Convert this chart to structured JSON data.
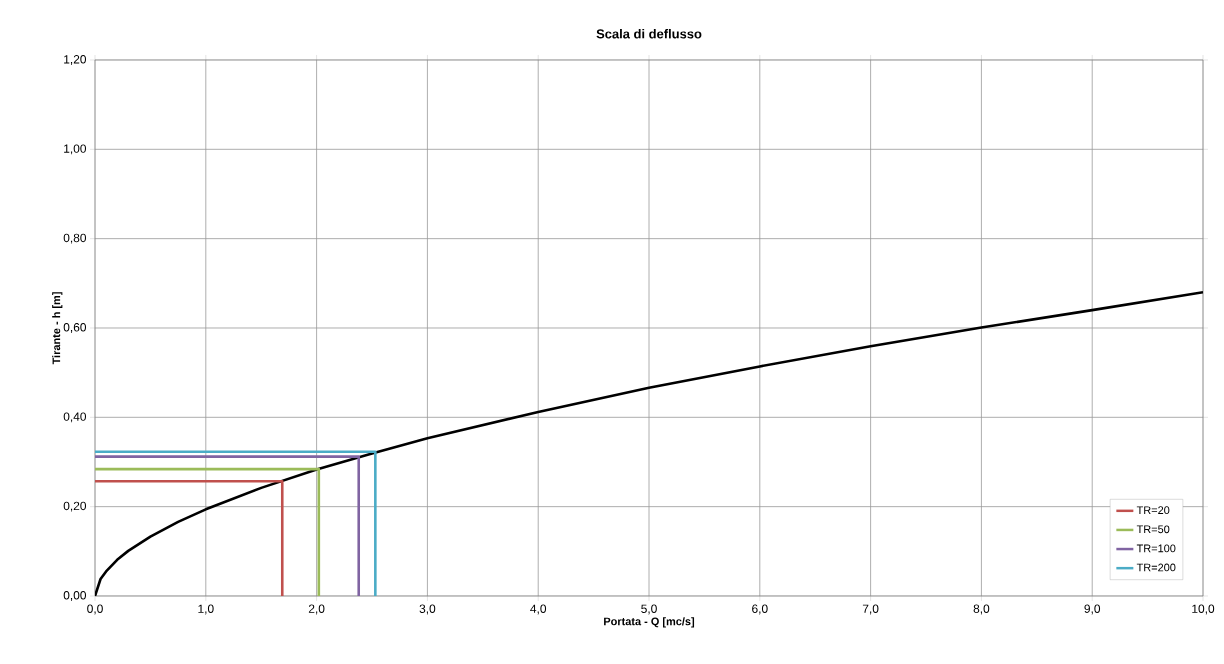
{
  "chart_data": {
    "type": "line",
    "title": "Scala di deflusso",
    "xlabel": "Portata  - Q [mc/s]",
    "ylabel": "Tirante - h [m]",
    "xlim": [
      0,
      10
    ],
    "ylim": [
      0,
      1.2
    ],
    "xticks": [
      {
        "value": 0,
        "label": "0,0"
      },
      {
        "value": 1,
        "label": "1,0"
      },
      {
        "value": 2,
        "label": "2,0"
      },
      {
        "value": 3,
        "label": "3,0"
      },
      {
        "value": 4,
        "label": "4,0"
      },
      {
        "value": 5,
        "label": "5,0"
      },
      {
        "value": 6,
        "label": "6,0"
      },
      {
        "value": 7,
        "label": "7,0"
      },
      {
        "value": 8,
        "label": "8,0"
      },
      {
        "value": 9,
        "label": "9,0"
      },
      {
        "value": 10,
        "label": "10,0"
      }
    ],
    "yticks": [
      {
        "value": 0,
        "label": "0,00"
      },
      {
        "value": 0.2,
        "label": "0,20"
      },
      {
        "value": 0.4,
        "label": "0,40"
      },
      {
        "value": 0.6,
        "label": "0,60"
      },
      {
        "value": 0.8,
        "label": "0,80"
      },
      {
        "value": 1.0,
        "label": "1,00"
      },
      {
        "value": 1.2,
        "label": "1,20"
      }
    ],
    "grid": true,
    "legend": "bottom right",
    "marker": "none",
    "line_style": "solid",
    "series": [
      {
        "color": "#000000",
        "x": [
          0,
          0.05,
          0.1,
          0.2,
          0.3,
          0.5,
          0.75,
          1,
          1.5,
          2,
          2.5,
          3,
          4,
          5,
          6,
          7,
          8,
          9,
          10
        ],
        "values": [
          0,
          0.038,
          0.055,
          0.081,
          0.101,
          0.133,
          0.166,
          0.194,
          0.242,
          0.283,
          0.319,
          0.353,
          0.412,
          0.466,
          0.514,
          0.559,
          0.601,
          0.64,
          0.68
        ]
      },
      {
        "name": "TR=20",
        "color": "#c0504d",
        "x": [
          0,
          1.69,
          1.69
        ],
        "values": [
          0.257,
          0.257,
          0
        ]
      },
      {
        "name": "TR=50",
        "color": "#9bbb59",
        "x": [
          0,
          2.02,
          2.02
        ],
        "values": [
          0.284,
          0.284,
          0
        ]
      },
      {
        "name": "TR=100",
        "color": "#8064a2",
        "x": [
          0,
          2.38,
          2.38
        ],
        "values": [
          0.312,
          0.312,
          0
        ]
      },
      {
        "name": "TR=200",
        "color": "#4bacc6",
        "x": [
          0,
          2.53,
          2.53
        ],
        "values": [
          0.323,
          0.323,
          0
        ]
      }
    ]
  }
}
